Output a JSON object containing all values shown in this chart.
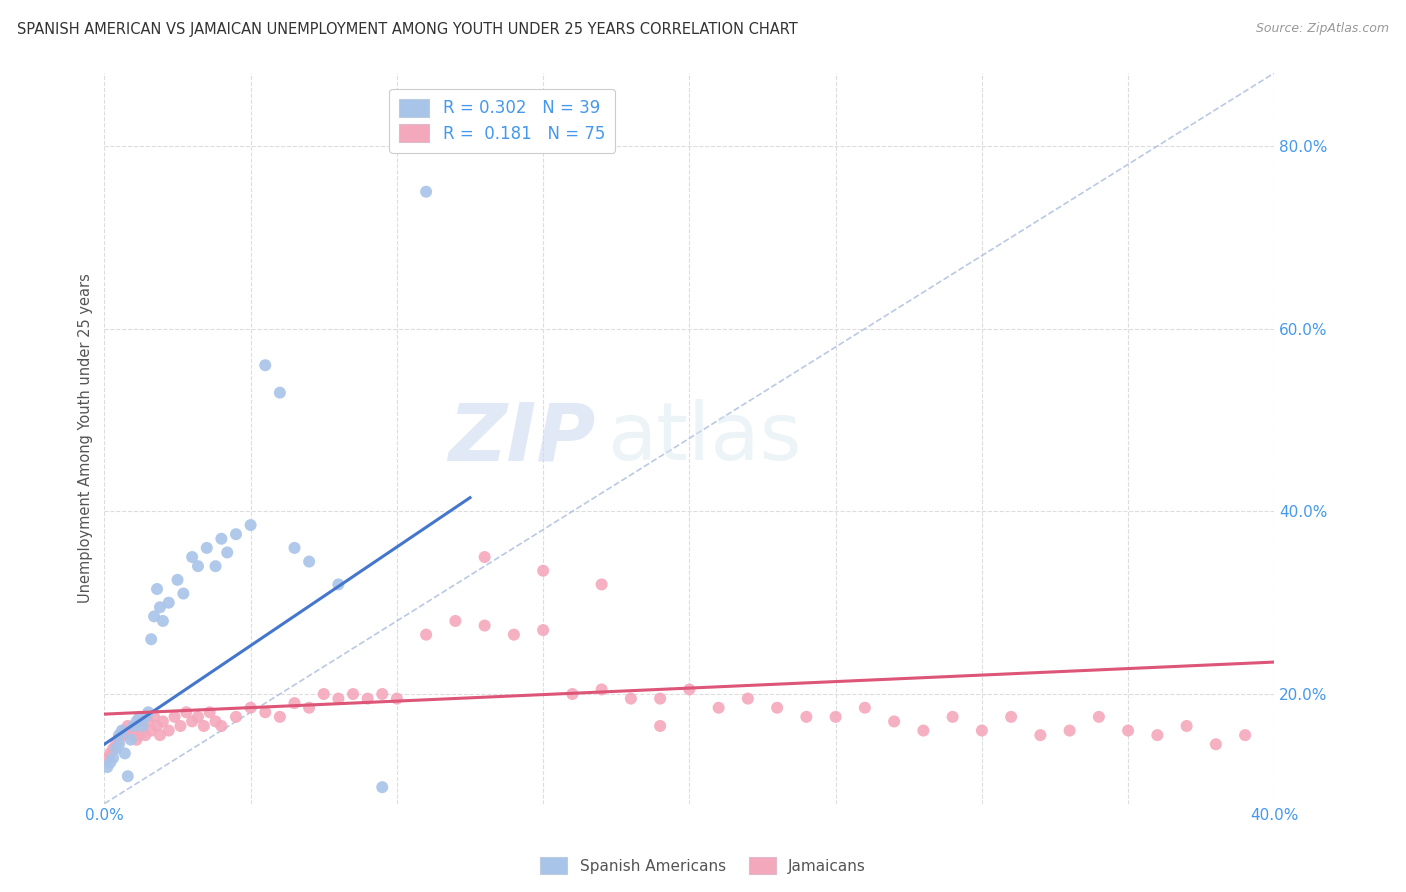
{
  "title": "SPANISH AMERICAN VS JAMAICAN UNEMPLOYMENT AMONG YOUTH UNDER 25 YEARS CORRELATION CHART",
  "source": "Source: ZipAtlas.com",
  "ylabel": "Unemployment Among Youth under 25 years",
  "watermark_zip": "ZIP",
  "watermark_atlas": "atlas",
  "xlim": [
    0.0,
    0.4
  ],
  "ylim": [
    0.08,
    0.88
  ],
  "xtick_positions": [
    0.0,
    0.05,
    0.1,
    0.15,
    0.2,
    0.25,
    0.3,
    0.35,
    0.4
  ],
  "xticklabels": [
    "0.0%",
    "",
    "",
    "",
    "",
    "",
    "",
    "",
    "40.0%"
  ],
  "ytick_positions": [
    0.2,
    0.4,
    0.6,
    0.8
  ],
  "ytick_labels": [
    "20.0%",
    "40.0%",
    "60.0%",
    "80.0%"
  ],
  "color_blue_scatter": "#a8c4e8",
  "color_pink_scatter": "#f4a8bc",
  "color_blue_line": "#4477cc",
  "color_pink_line": "#dd5577",
  "color_diag_line": "#aabbdd",
  "color_legend_text": "#4499ee",
  "color_title": "#333333",
  "color_source": "#999999",
  "color_ylabel": "#555555",
  "color_tick": "#4499ee",
  "background_color": "#ffffff",
  "grid_color": "#dddddd",
  "legend_labels_blue": "R = 0.302   N = 39",
  "legend_labels_pink": "R =  0.181   N = 75",
  "bottom_legend_1": "Spanish Americans",
  "bottom_legend_2": "Jamaicans",
  "blue_line_x0": 0.0,
  "blue_line_y0": 0.145,
  "blue_line_x1": 0.125,
  "blue_line_y1": 0.415,
  "pink_line_x0": 0.0,
  "pink_line_y0": 0.178,
  "pink_line_x1": 0.4,
  "pink_line_y1": 0.235,
  "diag_line_x0": 0.0,
  "diag_line_y0": 0.08,
  "diag_line_x1": 0.4,
  "diag_line_y1": 0.88,
  "spanish_x": [
    0.001,
    0.002,
    0.003,
    0.004,
    0.005,
    0.005,
    0.006,
    0.007,
    0.008,
    0.009,
    0.01,
    0.011,
    0.012,
    0.013,
    0.014,
    0.015,
    0.016,
    0.017,
    0.018,
    0.019,
    0.02,
    0.022,
    0.025,
    0.027,
    0.03,
    0.032,
    0.035,
    0.038,
    0.04,
    0.042,
    0.045,
    0.05,
    0.055,
    0.06,
    0.065,
    0.07,
    0.08,
    0.095,
    0.11
  ],
  "spanish_y": [
    0.12,
    0.125,
    0.13,
    0.14,
    0.145,
    0.155,
    0.16,
    0.135,
    0.11,
    0.15,
    0.165,
    0.17,
    0.175,
    0.165,
    0.175,
    0.18,
    0.26,
    0.285,
    0.315,
    0.295,
    0.28,
    0.3,
    0.325,
    0.31,
    0.35,
    0.34,
    0.36,
    0.34,
    0.37,
    0.355,
    0.375,
    0.385,
    0.56,
    0.53,
    0.36,
    0.345,
    0.32,
    0.098,
    0.75
  ],
  "jamaican_x": [
    0.001,
    0.002,
    0.003,
    0.004,
    0.005,
    0.006,
    0.007,
    0.008,
    0.009,
    0.01,
    0.011,
    0.012,
    0.013,
    0.014,
    0.015,
    0.016,
    0.017,
    0.018,
    0.019,
    0.02,
    0.022,
    0.024,
    0.026,
    0.028,
    0.03,
    0.032,
    0.034,
    0.036,
    0.038,
    0.04,
    0.045,
    0.05,
    0.055,
    0.06,
    0.065,
    0.07,
    0.075,
    0.08,
    0.085,
    0.09,
    0.095,
    0.1,
    0.11,
    0.12,
    0.13,
    0.14,
    0.15,
    0.16,
    0.17,
    0.18,
    0.19,
    0.2,
    0.21,
    0.22,
    0.23,
    0.24,
    0.25,
    0.26,
    0.27,
    0.28,
    0.29,
    0.3,
    0.31,
    0.32,
    0.33,
    0.34,
    0.35,
    0.36,
    0.37,
    0.38,
    0.39,
    0.13,
    0.15,
    0.17,
    0.19
  ],
  "jamaican_y": [
    0.13,
    0.135,
    0.14,
    0.145,
    0.15,
    0.155,
    0.16,
    0.165,
    0.155,
    0.16,
    0.15,
    0.155,
    0.165,
    0.155,
    0.17,
    0.16,
    0.175,
    0.165,
    0.155,
    0.17,
    0.16,
    0.175,
    0.165,
    0.18,
    0.17,
    0.175,
    0.165,
    0.18,
    0.17,
    0.165,
    0.175,
    0.185,
    0.18,
    0.175,
    0.19,
    0.185,
    0.2,
    0.195,
    0.2,
    0.195,
    0.2,
    0.195,
    0.265,
    0.28,
    0.275,
    0.265,
    0.27,
    0.2,
    0.205,
    0.195,
    0.195,
    0.205,
    0.185,
    0.195,
    0.185,
    0.175,
    0.175,
    0.185,
    0.17,
    0.16,
    0.175,
    0.16,
    0.175,
    0.155,
    0.16,
    0.175,
    0.16,
    0.155,
    0.165,
    0.145,
    0.155,
    0.35,
    0.335,
    0.32,
    0.165
  ]
}
